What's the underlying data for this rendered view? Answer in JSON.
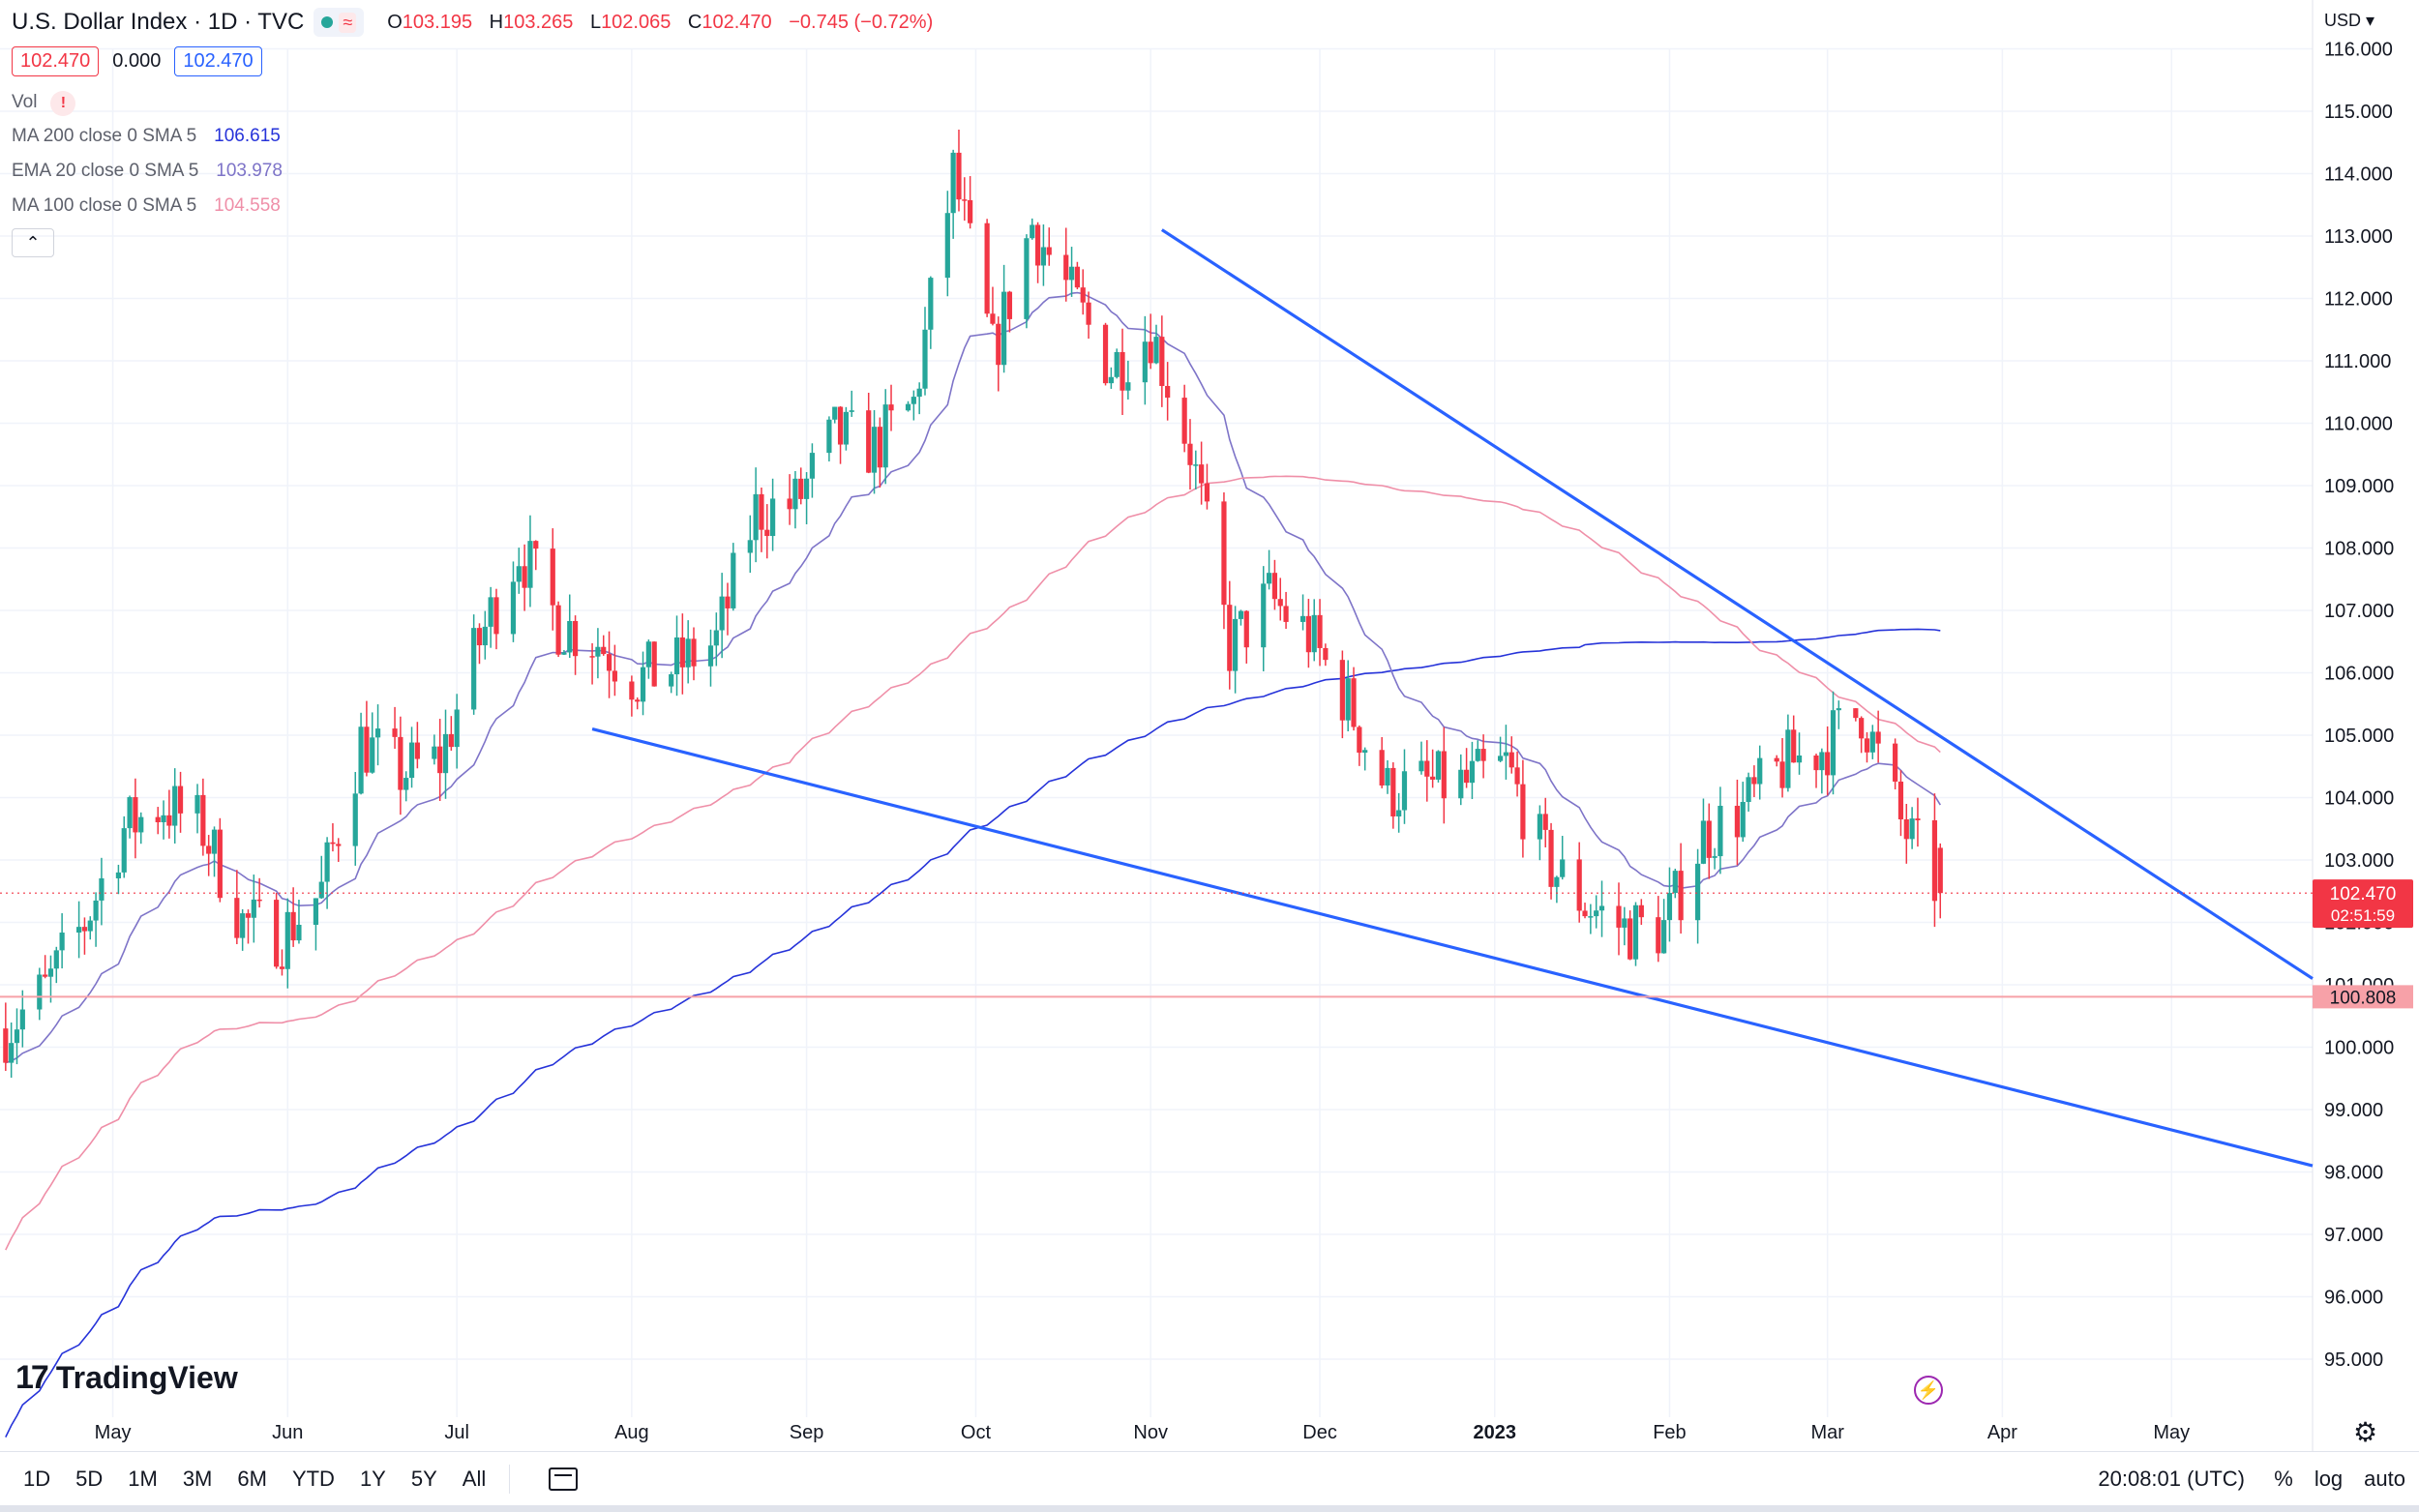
{
  "header": {
    "title": "U.S. Dollar Index · 1D · TVC",
    "status_icon": "market-open-dot",
    "open_label": "O",
    "open": "103.195",
    "high_label": "H",
    "high": "103.265",
    "low_label": "L",
    "low": "102.065",
    "close_label": "C",
    "close": "102.470",
    "change": "−0.745 (−0.72%)",
    "bid": "102.470",
    "spread": "0.000",
    "ask": "102.470"
  },
  "indicators": {
    "vol_label": "Vol",
    "ma200_label": "MA 200 close 0 SMA 5",
    "ma200_value": "106.615",
    "ma200_color": "#2633d9",
    "ema20_label": "EMA 20 close 0 SMA 5",
    "ema20_value": "103.978",
    "ema20_color": "#7e74c8",
    "ma100_label": "MA 100 close 0 SMA 5",
    "ma100_value": "104.558",
    "ma100_color": "#ef8fa8",
    "collapse_icon": "chevron-up-icon"
  },
  "price_axis": {
    "currency": "USD",
    "current_price": "102.470",
    "countdown": "02:51:59",
    "alert_level": "100.808"
  },
  "bottom_bar": {
    "ranges": [
      "1D",
      "5D",
      "1M",
      "3M",
      "6M",
      "YTD",
      "1Y",
      "5Y",
      "All"
    ],
    "clock": "20:08:01 (UTC)",
    "percent": "%",
    "log": "log",
    "auto": "auto"
  },
  "branding": {
    "logo_text": "TradingView"
  },
  "colors": {
    "up": "#26a69a",
    "down": "#f23645",
    "trendline": "#2962ff"
  },
  "chart_data": {
    "type": "candlestick",
    "title": "U.S. Dollar Index",
    "timeframe": "1D",
    "y_range": [
      94.5,
      116.2
    ],
    "y_ticks": [
      95,
      96,
      97,
      98,
      99,
      100,
      101,
      102,
      103,
      104,
      105,
      106,
      107,
      108,
      109,
      110,
      111,
      112,
      113,
      114,
      115,
      116
    ],
    "x_range": [
      "2022-04-11",
      "2023-05-26"
    ],
    "x_ticks": [
      {
        "label": "May",
        "date": "2022-05-01"
      },
      {
        "label": "Jun",
        "date": "2022-06-01"
      },
      {
        "label": "Jul",
        "date": "2022-07-01"
      },
      {
        "label": "Aug",
        "date": "2022-08-01"
      },
      {
        "label": "Sep",
        "date": "2022-09-01"
      },
      {
        "label": "Oct",
        "date": "2022-10-01"
      },
      {
        "label": "Nov",
        "date": "2022-11-01"
      },
      {
        "label": "Dec",
        "date": "2022-12-01"
      },
      {
        "label": "2023",
        "date": "2023-01-01"
      },
      {
        "label": "Feb",
        "date": "2023-02-01"
      },
      {
        "label": "Mar",
        "date": "2023-03-01"
      },
      {
        "label": "Apr",
        "date": "2023-04-01"
      },
      {
        "label": "May",
        "date": "2023-05-01"
      }
    ],
    "closes": [
      [
        "2022-04-12",
        100.3
      ],
      [
        "2022-04-19",
        100.9
      ],
      [
        "2022-04-26",
        102.0
      ],
      [
        "2022-05-03",
        103.5
      ],
      [
        "2022-05-10",
        103.9
      ],
      [
        "2022-05-17",
        103.5
      ],
      [
        "2022-05-24",
        102.0
      ],
      [
        "2022-05-31",
        101.8
      ],
      [
        "2022-06-07",
        102.5
      ],
      [
        "2022-06-14",
        104.9
      ],
      [
        "2022-06-21",
        104.4
      ],
      [
        "2022-06-28",
        104.6
      ],
      [
        "2022-07-05",
        106.5
      ],
      [
        "2022-07-12",
        108.0
      ],
      [
        "2022-07-19",
        106.8
      ],
      [
        "2022-07-26",
        106.5
      ],
      [
        "2022-08-02",
        105.9
      ],
      [
        "2022-08-09",
        106.1
      ],
      [
        "2022-08-16",
        106.5
      ],
      [
        "2022-08-23",
        108.6
      ],
      [
        "2022-08-30",
        108.7
      ],
      [
        "2022-09-06",
        109.8
      ],
      [
        "2022-09-13",
        109.6
      ],
      [
        "2022-09-20",
        110.3
      ],
      [
        "2022-09-27",
        114.0
      ],
      [
        "2022-10-04",
        111.1
      ],
      [
        "2022-10-11",
        113.2
      ],
      [
        "2022-10-18",
        112.0
      ],
      [
        "2022-10-25",
        110.9
      ],
      [
        "2022-11-01",
        111.5
      ],
      [
        "2022-11-08",
        109.6
      ],
      [
        "2022-11-15",
        106.4
      ],
      [
        "2022-11-22",
        107.2
      ],
      [
        "2022-11-29",
        106.6
      ],
      [
        "2022-12-06",
        105.5
      ],
      [
        "2022-12-13",
        104.1
      ],
      [
        "2022-12-20",
        104.2
      ],
      [
        "2022-12-27",
        104.2
      ],
      [
        "2023-01-03",
        104.5
      ],
      [
        "2023-01-10",
        103.0
      ],
      [
        "2023-01-17",
        102.3
      ],
      [
        "2023-01-24",
        101.9
      ],
      [
        "2023-01-31",
        101.9
      ],
      [
        "2023-02-07",
        103.4
      ],
      [
        "2023-02-14",
        103.8
      ],
      [
        "2023-02-21",
        104.5
      ],
      [
        "2023-02-28",
        104.8
      ],
      [
        "2023-03-07",
        105.4
      ],
      [
        "2023-03-14",
        103.6
      ],
      [
        "2023-03-21",
        102.47
      ]
    ],
    "overlays": [
      {
        "name": "MA 200",
        "color": "#2633d9",
        "last": 106.615
      },
      {
        "name": "EMA 20",
        "color": "#7e74c8",
        "last": 103.978
      },
      {
        "name": "MA 100",
        "color": "#ef8fa8",
        "last": 104.558
      }
    ],
    "trendlines": [
      {
        "name": "upper",
        "from": [
          "2022-11-03",
          113.1
        ],
        "to": [
          "2023-05-26",
          101.1
        ]
      },
      {
        "name": "lower",
        "from": [
          "2022-07-25",
          105.1
        ],
        "to": [
          "2023-05-26",
          98.1
        ]
      }
    ],
    "horizontal_level": 100.808,
    "last_price": 102.47
  }
}
